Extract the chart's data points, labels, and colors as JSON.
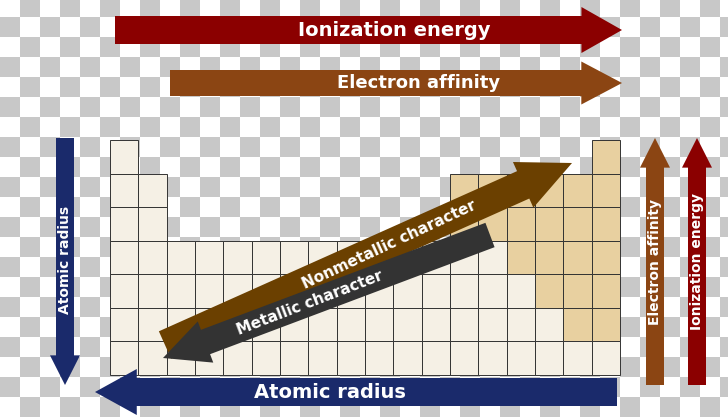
{
  "checker_light": "#ffffff",
  "checker_dark": "#c8c8c8",
  "table_line_color": "#333333",
  "nonmetal_color": "#e8d0a0",
  "metal_cell_color": "#f5f0e5",
  "arrow_ionization_color": "#8b0000",
  "arrow_electron_color": "#8b4513",
  "arrow_atomic_color": "#1a2a6b",
  "arrow_nonmetallic_color": "#6b4000",
  "arrow_metallic_color": "#333333",
  "label_ionization": "Ionization energy",
  "label_electron": "Electron affinity",
  "label_atomic": "Atomic radius",
  "label_nonmetallic": "Nonmetallic character",
  "label_metallic": "Metallic character",
  "label_atomic_left": "Atomic radius",
  "label_electron_right": "Electron affinity",
  "label_ionization_right": "Ionization energy",
  "figsize": [
    7.28,
    4.17
  ],
  "dpi": 100
}
